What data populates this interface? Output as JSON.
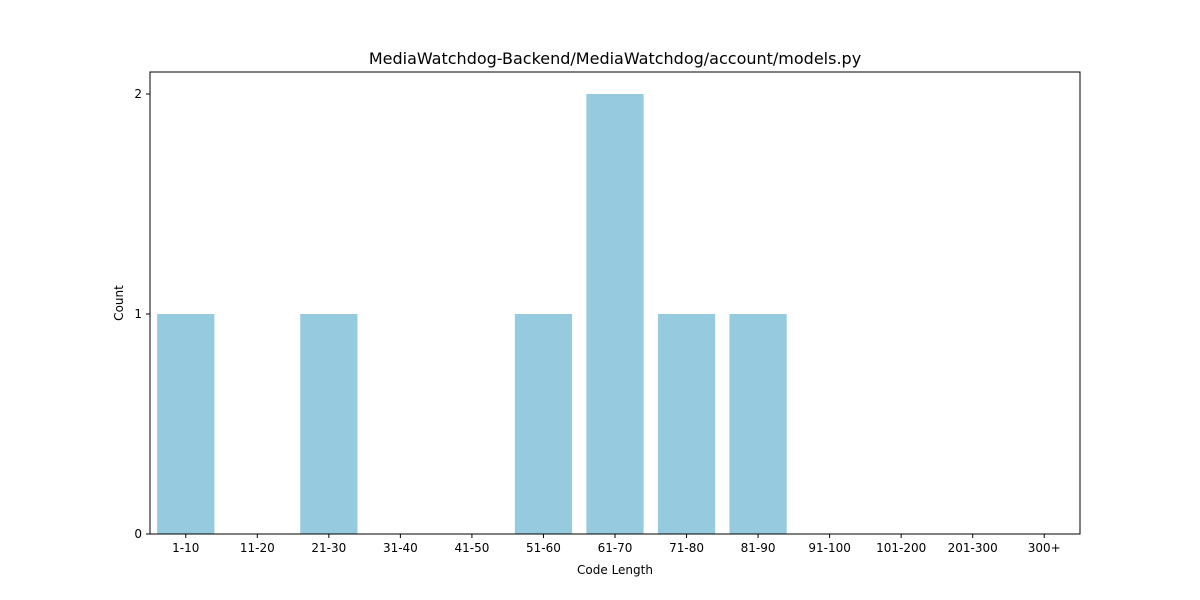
{
  "chart_data": {
    "type": "bar",
    "title": "MediaWatchdog-Backend/MediaWatchdog/account/models.py",
    "xlabel": "Code Length",
    "ylabel": "Count",
    "categories": [
      "1-10",
      "11-20",
      "21-30",
      "31-40",
      "41-50",
      "51-60",
      "61-70",
      "71-80",
      "81-90",
      "91-100",
      "101-200",
      "201-300",
      "300+"
    ],
    "values": [
      1,
      0,
      1,
      0,
      0,
      1,
      2,
      1,
      1,
      0,
      0,
      0,
      0
    ],
    "ylim": [
      0,
      2.1
    ],
    "yticks": [
      0,
      1,
      2
    ],
    "bar_color": "#96cadf",
    "grid": false,
    "legend": false
  }
}
